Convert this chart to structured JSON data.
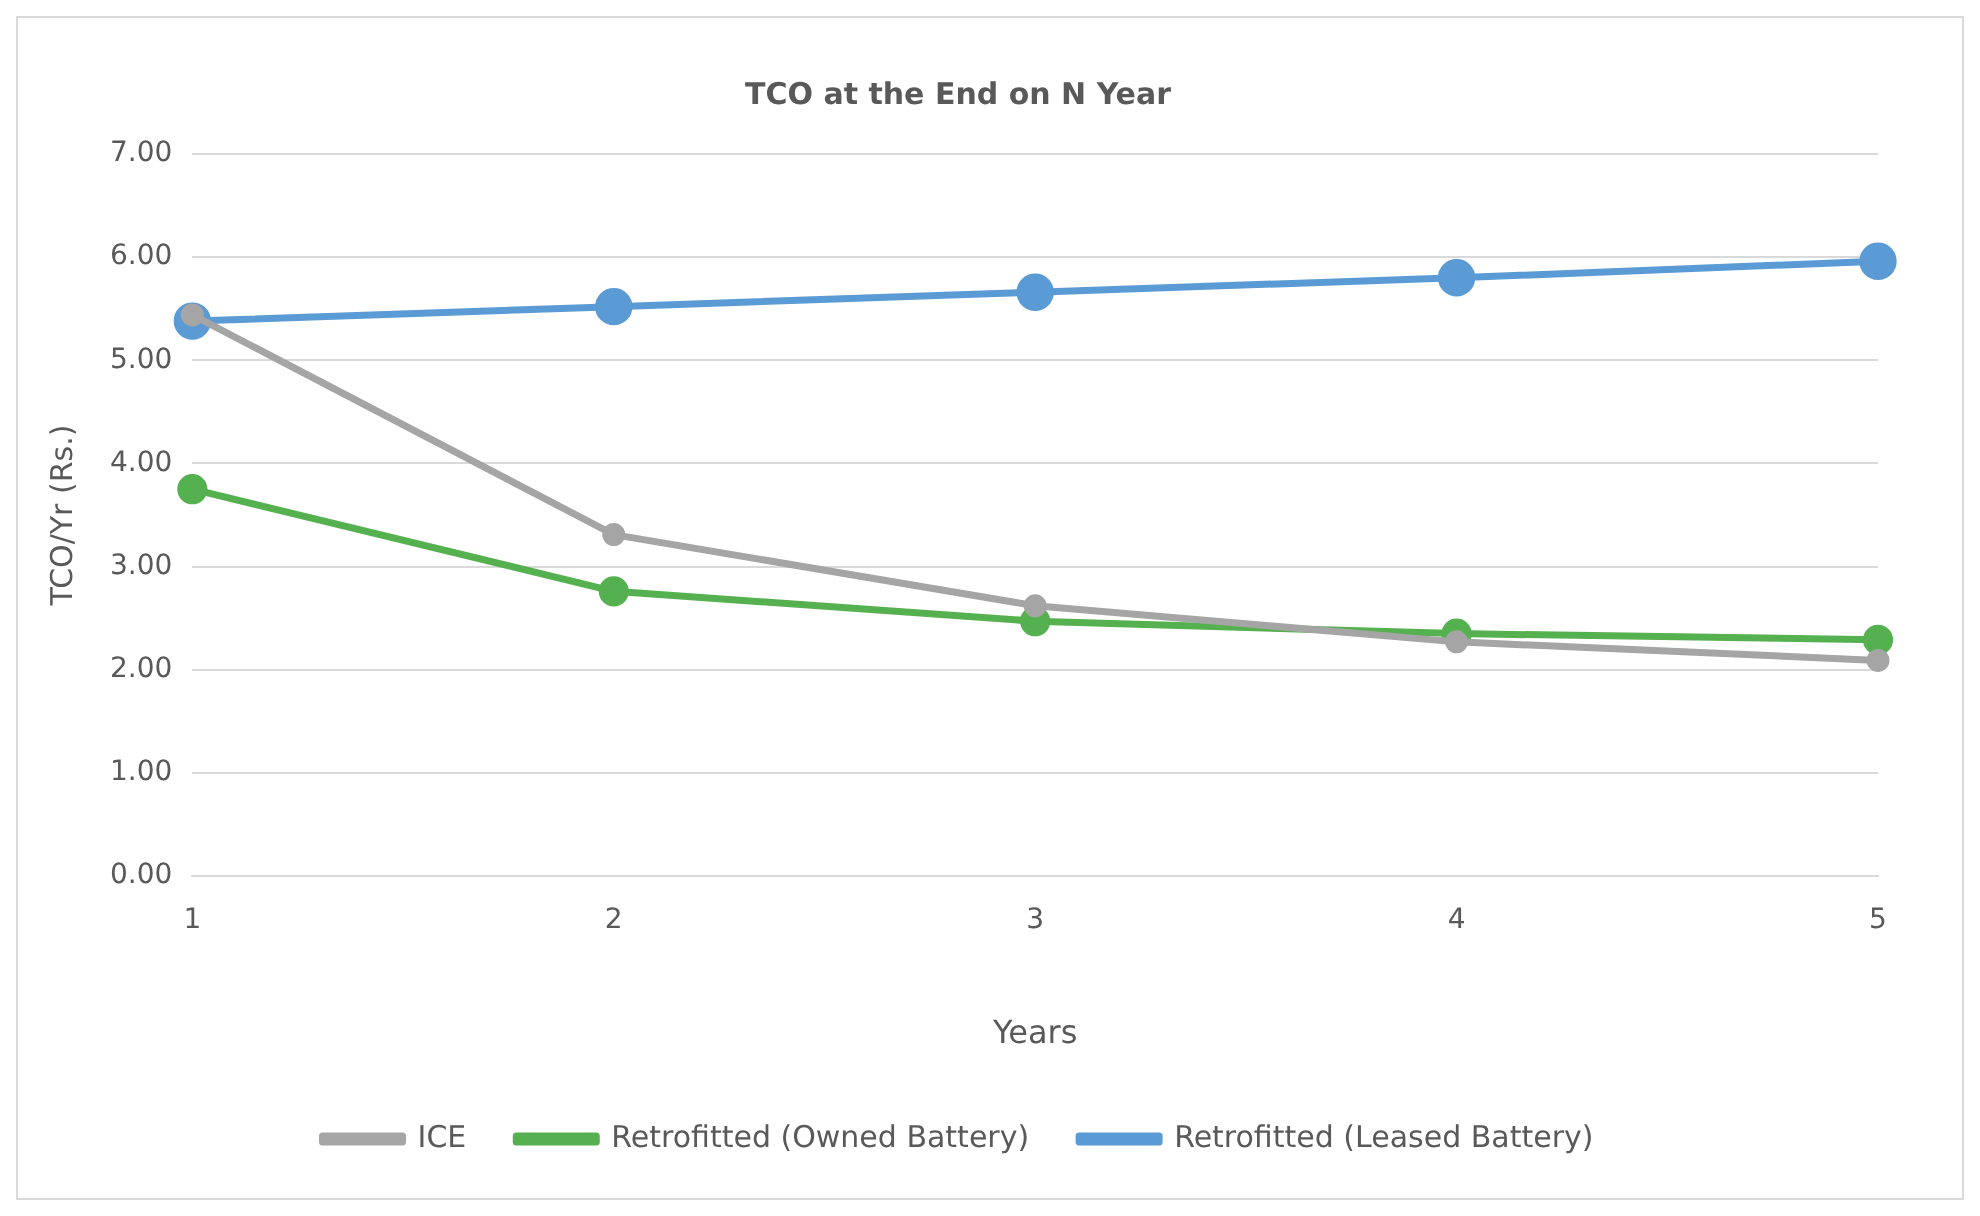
{
  "chart_data": {
    "type": "line",
    "title": "TCO at the End on N Year",
    "xlabel": "Years",
    "ylabel": "TCO/Yr (Rs.)",
    "categories": [
      "1",
      "2",
      "3",
      "4",
      "5"
    ],
    "series": [
      {
        "name": "ICE",
        "color": "#a5a5a5",
        "values": [
          5.44,
          3.31,
          2.62,
          2.27,
          2.09
        ]
      },
      {
        "name": "Retrofitted (Owned Battery)",
        "color": "#55b04f",
        "values": [
          3.75,
          2.76,
          2.47,
          2.35,
          2.29
        ]
      },
      {
        "name": "Retrofitted (Leased Battery)",
        "color": "#5b9bd5",
        "values": [
          5.38,
          5.52,
          5.66,
          5.8,
          5.96
        ]
      }
    ],
    "ylim": [
      0,
      7
    ],
    "yticks": [
      {
        "value": 0,
        "label": "0.00"
      },
      {
        "value": 1,
        "label": "1.00"
      },
      {
        "value": 2,
        "label": "2.00"
      },
      {
        "value": 3,
        "label": "3.00"
      },
      {
        "value": 4,
        "label": "4.00"
      },
      {
        "value": 5,
        "label": "5.00"
      },
      {
        "value": 6,
        "label": "6.00"
      },
      {
        "value": 7,
        "label": "7.00"
      }
    ],
    "grid": "y",
    "legend": "bottom",
    "marker": "circle",
    "line_style": "solid"
  }
}
